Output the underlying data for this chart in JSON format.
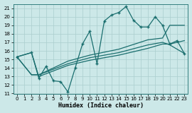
{
  "xlabel": "Humidex (Indice chaleur)",
  "bg_color": "#cce8e8",
  "line_color": "#1a6e6e",
  "grid_color": "#aacece",
  "xlim": [
    -0.5,
    23.5
  ],
  "ylim": [
    11,
    21.5
  ],
  "yticks": [
    11,
    12,
    13,
    14,
    15,
    16,
    17,
    18,
    19,
    20,
    21
  ],
  "xticks": [
    0,
    1,
    2,
    3,
    4,
    5,
    6,
    7,
    8,
    9,
    10,
    11,
    12,
    13,
    14,
    15,
    16,
    17,
    18,
    19,
    20,
    21,
    22,
    23
  ],
  "line1_x": [
    0,
    2,
    3,
    4,
    5,
    6,
    7,
    8,
    9,
    10,
    11,
    12,
    13,
    14,
    15,
    16,
    17,
    18,
    19,
    20,
    21,
    22,
    23
  ],
  "line1_y": [
    15.3,
    15.8,
    12.8,
    14.2,
    12.5,
    12.4,
    11.2,
    14.0,
    16.8,
    18.3,
    14.5,
    19.5,
    20.2,
    20.5,
    21.2,
    19.6,
    18.8,
    18.8,
    20.0,
    19.0,
    16.8,
    17.2,
    15.7
  ],
  "line2_x": [
    0,
    2,
    3,
    7,
    10,
    14,
    18,
    20,
    21,
    23
  ],
  "line2_y": [
    15.3,
    15.8,
    13.0,
    14.3,
    14.9,
    15.5,
    16.3,
    16.8,
    16.8,
    17.2
  ],
  "line3_x": [
    0,
    2,
    3,
    7,
    10,
    14,
    18,
    20,
    21,
    23
  ],
  "line3_y": [
    15.3,
    13.2,
    13.2,
    14.5,
    15.2,
    15.8,
    16.7,
    17.0,
    16.7,
    15.7
  ],
  "line4_x": [
    0,
    2,
    3,
    7,
    10,
    14,
    18,
    20,
    21,
    23
  ],
  "line4_y": [
    15.3,
    13.2,
    13.2,
    14.8,
    15.5,
    16.2,
    17.3,
    17.5,
    19.0,
    19.0
  ]
}
